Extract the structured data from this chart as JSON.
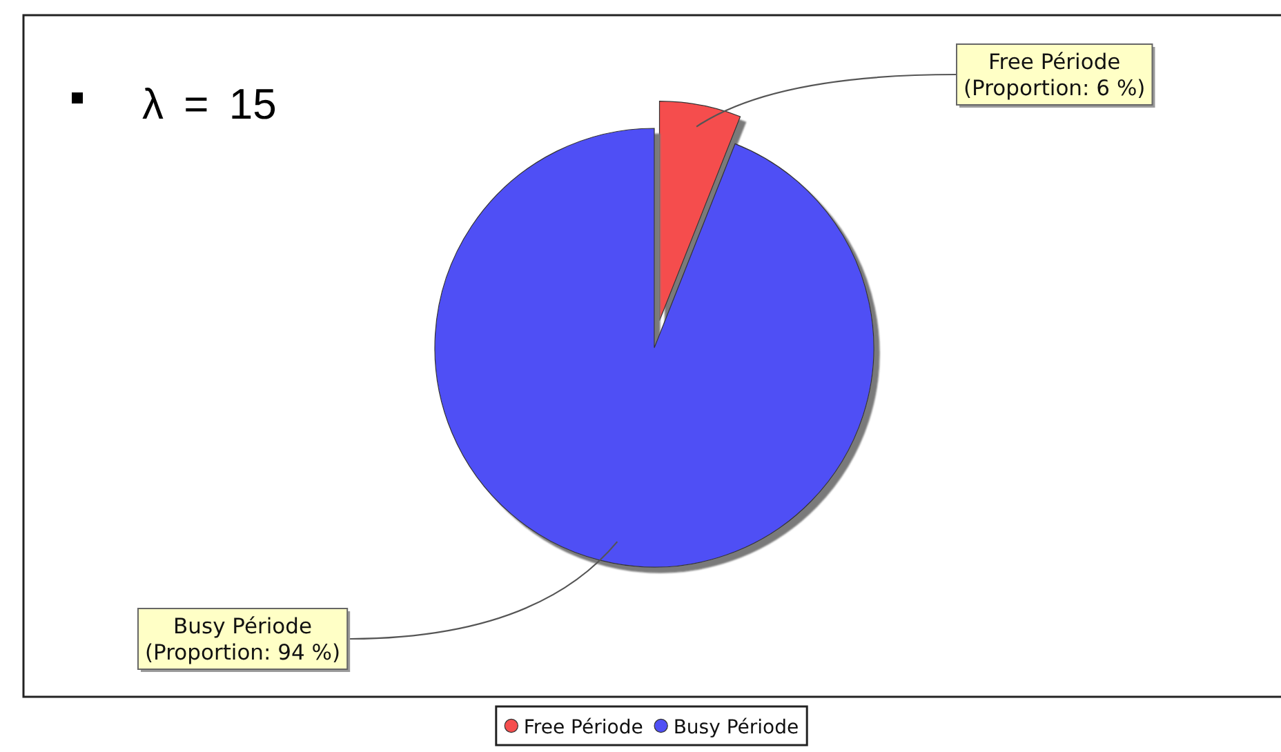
{
  "chart_data": {
    "type": "pie",
    "categories": [
      "Free Période",
      "Busy Période"
    ],
    "values": [
      6,
      94
    ],
    "colors": [
      "#f54e4e",
      "#4f4ff5"
    ],
    "value_labels": [
      "(Proportion: 6 %)",
      "(Proportion: 94 %)"
    ],
    "annotations": [
      "λ = 15"
    ],
    "legend": "bottom"
  }
}
